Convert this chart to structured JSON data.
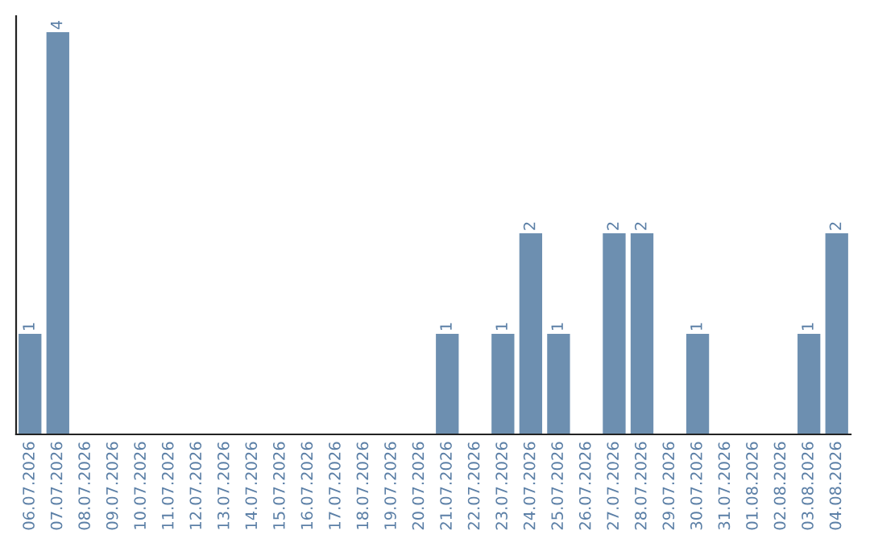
{
  "chart_data": {
    "type": "bar",
    "categories": [
      "06.07.2026",
      "07.07.2026",
      "08.07.2026",
      "09.07.2026",
      "10.07.2026",
      "11.07.2026",
      "12.07.2026",
      "13.07.2026",
      "14.07.2026",
      "15.07.2026",
      "16.07.2026",
      "17.07.2026",
      "18.07.2026",
      "19.07.2026",
      "20.07.2026",
      "21.07.2026",
      "22.07.2026",
      "23.07.2026",
      "24.07.2026",
      "25.07.2026",
      "26.07.2026",
      "27.07.2026",
      "28.07.2026",
      "29.07.2026",
      "30.07.2026",
      "31.07.2026",
      "01.08.2026",
      "02.08.2026",
      "03.08.2026",
      "04.08.2026"
    ],
    "values": [
      1,
      4,
      0,
      0,
      0,
      0,
      0,
      0,
      0,
      0,
      0,
      0,
      0,
      0,
      0,
      1,
      0,
      1,
      2,
      1,
      0,
      2,
      2,
      0,
      1,
      0,
      0,
      0,
      1,
      2
    ],
    "value_labels": [
      "1",
      "4",
      null,
      null,
      null,
      null,
      null,
      null,
      null,
      null,
      null,
      null,
      null,
      null,
      null,
      "1",
      null,
      "1",
      "2",
      "1",
      null,
      "2",
      "2",
      null,
      "1",
      null,
      null,
      null,
      "1",
      "2"
    ],
    "color": "#6d8fb0",
    "grid": false,
    "legend": false
  }
}
